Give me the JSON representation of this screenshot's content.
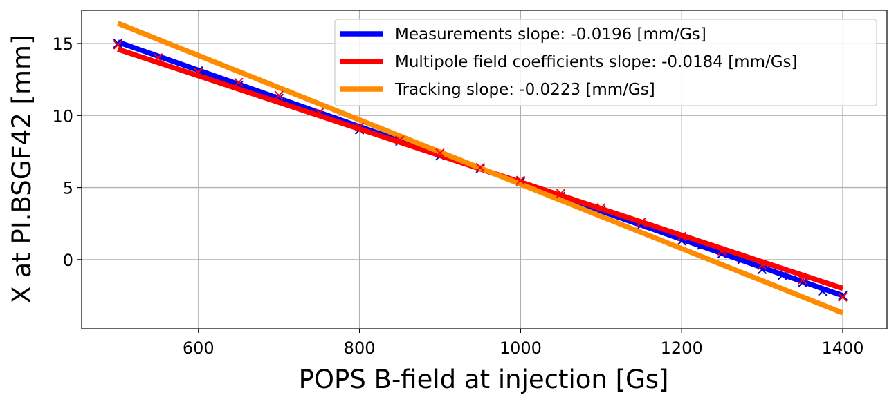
{
  "chart_data": {
    "type": "line",
    "xlabel": "POPS B-field at injection [Gs]",
    "ylabel": "X at PI.BSGF42 [mm]",
    "xlim": [
      455,
      1455
    ],
    "ylim": [
      -4.8,
      17.3
    ],
    "xticks": [
      600,
      800,
      1000,
      1200,
      1400
    ],
    "yticks": [
      0,
      5,
      10,
      15
    ],
    "grid": true,
    "legend_position": "top-right",
    "series": [
      {
        "name": "Measurements slope: -0.0196 [mm/Gs]",
        "kind": "fit-line",
        "color": "#0000ff",
        "x": [
          500,
          1400
        ],
        "y": [
          15.1,
          -2.5
        ]
      },
      {
        "name": "Multipole field coefficients slope: -0.0184 [mm/Gs]",
        "kind": "fit-line",
        "color": "#ff0000",
        "x": [
          500,
          1400
        ],
        "y": [
          14.6,
          -2.0
        ]
      },
      {
        "name": "Tracking slope: -0.0223 [mm/Gs]",
        "kind": "fit-line",
        "color": "#ff8c00",
        "x": [
          500,
          1400
        ],
        "y": [
          16.4,
          -3.7
        ]
      },
      {
        "name": "",
        "kind": "markers",
        "color": "#0000cc",
        "x": [
          500,
          550,
          600,
          650,
          700,
          750,
          800,
          850,
          900,
          950,
          1000,
          1050,
          1100,
          1150,
          1200,
          1225,
          1250,
          1275,
          1300,
          1325,
          1350,
          1375,
          1400
        ],
        "y": [
          15.0,
          14.0,
          13.1,
          12.1,
          11.2,
          10.2,
          9.0,
          8.2,
          7.2,
          6.3,
          5.4,
          4.4,
          3.4,
          2.4,
          1.3,
          1.0,
          0.4,
          0.0,
          -0.7,
          -1.1,
          -1.6,
          -2.2,
          -2.5
        ]
      },
      {
        "name": "",
        "kind": "markers",
        "color": "#ff0000",
        "x": [
          500,
          550,
          600,
          650,
          700,
          750,
          800,
          850,
          900,
          950,
          1000,
          1050,
          1100,
          1150,
          1200,
          1250,
          1300,
          1350,
          1400
        ],
        "y": [
          14.9,
          14.0,
          13.0,
          12.3,
          11.4,
          10.2,
          9.2,
          8.3,
          7.4,
          6.4,
          5.5,
          4.6,
          3.6,
          2.6,
          1.6,
          0.6,
          -0.4,
          -1.4,
          -2.6
        ]
      }
    ]
  }
}
